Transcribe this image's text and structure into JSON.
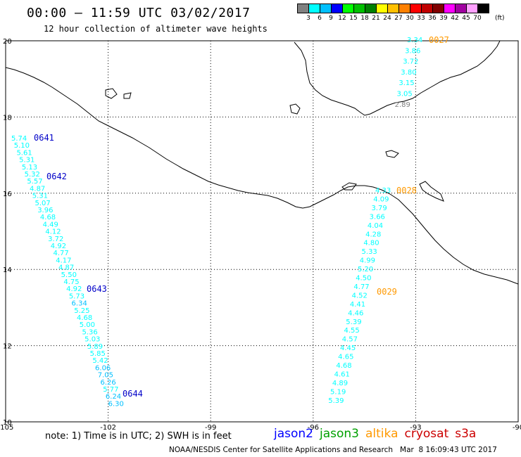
{
  "header": {
    "title": "00:00 – 11:59 UTC 03/02/2017",
    "subtitle": "12 hour collection of altimeter wave heights"
  },
  "legend": {
    "colors": [
      "#808080",
      "#00ffff",
      "#00c0ff",
      "#0000ff",
      "#00ff00",
      "#00c000",
      "#008000",
      "#ffff00",
      "#ffc000",
      "#ff8000",
      "#ff0000",
      "#c00000",
      "#800000",
      "#ff00ff",
      "#a000a0",
      "#ffa0ff",
      "#000000"
    ],
    "labels": [
      "3",
      "6",
      "9",
      "12",
      "15",
      "18",
      "21",
      "24",
      "27",
      "30",
      "33",
      "36",
      "39",
      "42",
      "45",
      "70"
    ],
    "unit": "(ft)"
  },
  "axes": {
    "lon_labels": [
      "-105",
      "-102",
      "-99",
      "-96",
      "-93",
      "-90"
    ],
    "lat_labels": [
      "20",
      "18",
      "16",
      "14",
      "12",
      "10"
    ]
  },
  "passes": [
    {
      "id": "0641",
      "color": "#0000c8"
    },
    {
      "id": "0642",
      "color": "#0000c8"
    },
    {
      "id": "0643",
      "color": "#0000c8"
    },
    {
      "id": "0644",
      "color": "#0000c8"
    },
    {
      "id": "0027",
      "color": "#ff9900"
    },
    {
      "id": "0028",
      "color": "#ff9900"
    },
    {
      "id": "0029",
      "color": "#ff9900"
    }
  ],
  "track_values": {
    "west": [
      "5.74",
      "5.10",
      "5.61",
      "5.31",
      "5.13",
      "5.32",
      "5.57",
      "4.87",
      "5.31",
      "5.07",
      "3.96",
      "4.68",
      "4.49",
      "4.12",
      "3.72",
      "4.92",
      "4.77",
      "4.17",
      "4.87",
      "5.50",
      "4.75",
      "4.92",
      "5.73",
      "6.34",
      "5.25",
      "4.68",
      "5.00",
      "5.36",
      "5.03",
      "5.89",
      "5.85",
      "5.42",
      "6.06",
      "7.05",
      "6.26",
      "5.77",
      "6.24",
      "6.30"
    ],
    "northeast": [
      "3.34",
      "3.86",
      "3.72",
      "3.80",
      "3.15",
      "3.05",
      "2.89"
    ],
    "east": [
      "4.33",
      "4.09",
      "3.79",
      "3.66",
      "4.04",
      "4.28",
      "4.80",
      "5.33",
      "4.99",
      "5.20",
      "4.50",
      "4.77",
      "4.52",
      "4.41",
      "4.46",
      "5.39",
      "4.55",
      "4.57",
      "4.45",
      "4.65",
      "4.68",
      "4.61",
      "4.89",
      "5.19",
      "5.39"
    ]
  },
  "footer": {
    "note": "note: 1) Time is in UTC; 2) SWH is in feet",
    "satellites": [
      {
        "name": "jason2",
        "color": "#0000ff"
      },
      {
        "name": "jason3",
        "color": "#00a000"
      },
      {
        "name": "altika",
        "color": "#ff9900"
      },
      {
        "name": "cryosat",
        "color": "#cc0000"
      },
      {
        "name": "s3a",
        "color": "#cc0000"
      }
    ],
    "credit": "NOAA/NESDIS Center for Satellite Applications and Research   Mar  8 16:09:43 UTC 2017"
  }
}
